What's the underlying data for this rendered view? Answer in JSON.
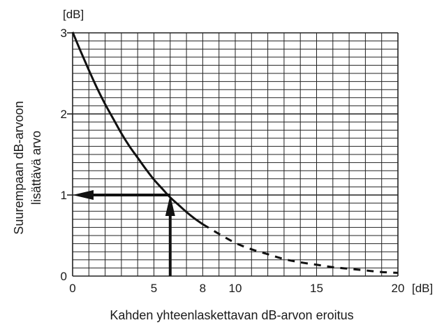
{
  "chart_data": {
    "type": "line",
    "y_unit": "[dB]",
    "x_unit": "[dB]",
    "ylabel": [
      "Suurempaan dB-arvoon",
      "lisättävä arvo"
    ],
    "xlabel": "Kahden yhteenlaskettavan dB-arvon eroitus",
    "xlim": [
      0,
      20
    ],
    "ylim": [
      0,
      3
    ],
    "x_ticks": [
      "0",
      "5",
      "8",
      "10",
      "15",
      "20"
    ],
    "y_ticks": [
      "0",
      "1",
      "2",
      "3"
    ],
    "grid": true,
    "series": [
      {
        "style": "solid",
        "x": [
          0,
          0.5,
          1,
          1.5,
          2,
          2.5,
          3,
          3.5,
          4,
          4.5,
          5,
          5.5,
          6,
          6.5,
          7,
          7.5,
          8
        ],
        "y": [
          3.01,
          2.77,
          2.54,
          2.32,
          2.12,
          1.94,
          1.76,
          1.6,
          1.46,
          1.32,
          1.19,
          1.08,
          0.97,
          0.88,
          0.79,
          0.71,
          0.64
        ]
      },
      {
        "style": "dashed",
        "x": [
          8,
          9,
          10,
          11,
          12,
          13,
          14,
          15,
          16,
          17,
          18,
          19,
          20
        ],
        "y": [
          0.64,
          0.52,
          0.41,
          0.33,
          0.27,
          0.21,
          0.17,
          0.14,
          0.11,
          0.09,
          0.07,
          0.05,
          0.04
        ]
      }
    ],
    "annotations": [
      {
        "type": "arrow-up",
        "x": 6,
        "y_from": 0,
        "y_to": 1
      },
      {
        "type": "arrow-left",
        "y": 1,
        "x_from": 6,
        "x_to": 0
      }
    ]
  }
}
